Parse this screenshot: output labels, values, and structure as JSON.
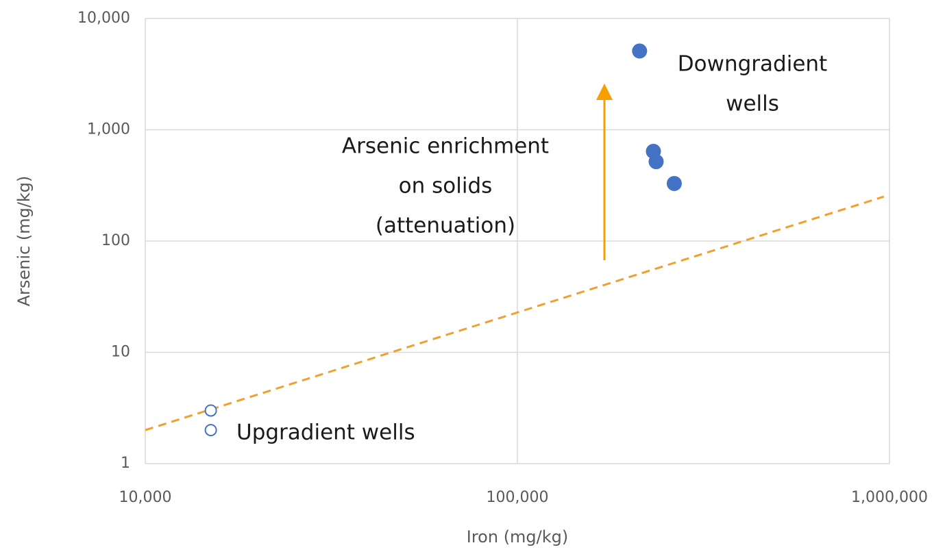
{
  "chart_data": {
    "type": "scatter",
    "x_label": "Iron (mg/kg)",
    "y_label": "Arsenic (mg/kg)",
    "log_x": true,
    "log_y": true,
    "grid": true,
    "xlim": [
      10000,
      1000000
    ],
    "ylim": [
      1,
      10000
    ],
    "xticks": [
      {
        "value": 10000,
        "label": "10,000"
      },
      {
        "value": 100000,
        "label": "100,000"
      },
      {
        "value": 1000000,
        "label": "1,000,000"
      }
    ],
    "yticks": [
      1,
      10,
      100,
      {
        "value": 1000,
        "label": "1,000"
      },
      {
        "value": 10000,
        "label": "10,000"
      }
    ],
    "series": [
      {
        "color": "#4472c4",
        "marker": "open",
        "x": [
          15000,
          15000
        ],
        "values": [
          3,
          2
        ]
      },
      {
        "color": "#4472c4",
        "marker": "filled",
        "x": [
          213000,
          232000,
          236000,
          264000
        ],
        "values": [
          5100,
          640,
          517,
          329
        ]
      }
    ],
    "trend_line": {
      "color": "#f0a030",
      "dashed": true,
      "x": [
        10000,
        966000
      ],
      "values": [
        2,
        251
      ]
    },
    "annotations": [
      [
        "Downgradient",
        "wells"
      ],
      [
        "Arsenic enrichment",
        "on solids",
        "(attenuation)"
      ],
      [
        "Upgradient wells"
      ]
    ]
  }
}
